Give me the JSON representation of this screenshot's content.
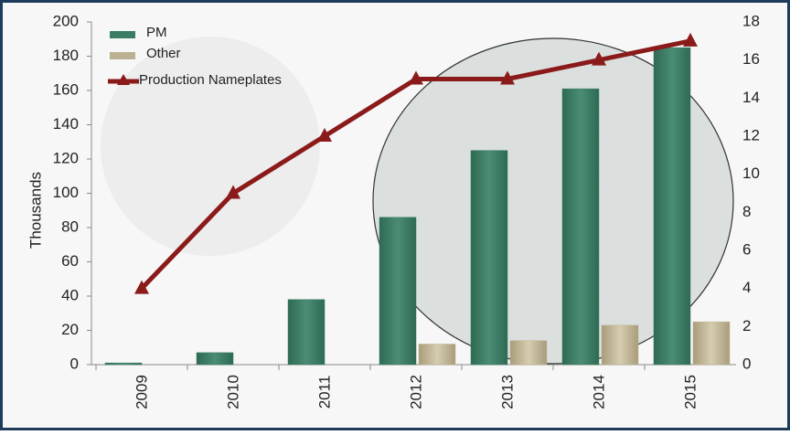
{
  "chart_data": {
    "type": "bar-line",
    "categories": [
      "2009",
      "2010",
      "2011",
      "2012",
      "2013",
      "2014",
      "2015"
    ],
    "y_label": "Thousands",
    "series": [
      {
        "name": "PM",
        "type": "bar",
        "color": "#3b7d64",
        "values": [
          1,
          7,
          38,
          86,
          125,
          161,
          185
        ]
      },
      {
        "name": "Other",
        "type": "bar",
        "color": "#bcb092",
        "values": [
          0,
          0,
          0,
          12,
          14,
          23,
          25
        ]
      },
      {
        "name": "Production Nameplates",
        "type": "line",
        "axis": "y2",
        "color": "#8b1a1a",
        "values": [
          4,
          9,
          12,
          15,
          15,
          16,
          17
        ]
      }
    ],
    "ylim": [
      0,
      200
    ],
    "yticks": [
      0,
      20,
      40,
      60,
      80,
      100,
      120,
      140,
      160,
      180,
      200
    ],
    "y2lim": [
      0,
      18
    ],
    "y2ticks": [
      0,
      2,
      4,
      6,
      8,
      10,
      12,
      14,
      16,
      18
    ]
  }
}
